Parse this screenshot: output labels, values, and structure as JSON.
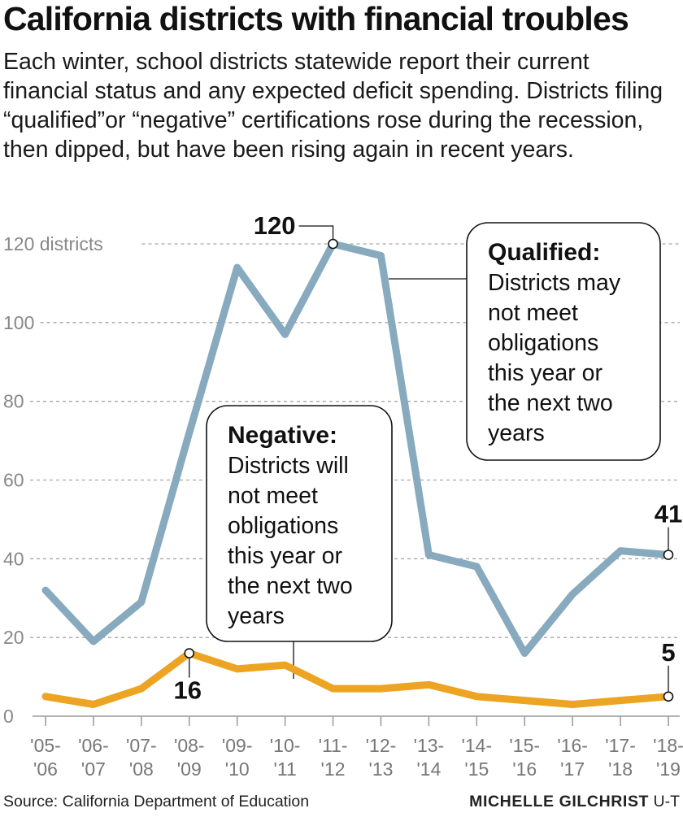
{
  "header": {
    "title": "California districts with financial troubles",
    "subtitle": "Each winter, school districts statewide report their current financial status and any expected deficit spending. Districts filing “qualified”or “negative” certifications rose during the recession, then dipped, but have been rising again in recent years."
  },
  "footer": {
    "source": "Source: California Department of Education",
    "credit_name": "MICHELLE GILCHRIST",
    "credit_org": "U-T"
  },
  "chart_data": {
    "type": "line",
    "categories": [
      [
        "'05-",
        "'06"
      ],
      [
        "'06-",
        "'07"
      ],
      [
        "'07-",
        "'08"
      ],
      [
        "'08-",
        "'09"
      ],
      [
        "'09-",
        "'10"
      ],
      [
        "'10-",
        "'11"
      ],
      [
        "'11-",
        "'12"
      ],
      [
        "'12-",
        "'13"
      ],
      [
        "'13-",
        "'14"
      ],
      [
        "'14-",
        "'15"
      ],
      [
        "'15-",
        "'16"
      ],
      [
        "'16-",
        "'17"
      ],
      [
        "'17-",
        "'18"
      ],
      [
        "'18-",
        "'19"
      ]
    ],
    "ylim": [
      0,
      120
    ],
    "yticks": [
      0,
      20,
      40,
      60,
      80,
      100,
      120
    ],
    "ytick_labels": [
      "0",
      "20",
      "40",
      "60",
      "80",
      "100",
      "120 districts"
    ],
    "grid": true,
    "series": [
      {
        "name": "Qualified:",
        "description": [
          "Districts may",
          "not meet",
          "obligations",
          "this year or",
          "the next two",
          "years"
        ],
        "color": "#87aabe",
        "values": [
          32,
          19,
          29,
          72,
          114,
          97,
          120,
          117,
          41,
          38,
          16,
          31,
          42,
          41
        ]
      },
      {
        "name": "Negative:",
        "description": [
          "Districts will",
          "not meet",
          "obligations",
          "this year or",
          "the next two",
          "years"
        ],
        "color": "#eca422",
        "values": [
          5,
          3,
          7,
          16,
          12,
          13,
          7,
          7,
          8,
          5,
          4,
          3,
          4,
          5
        ]
      }
    ],
    "annotations": [
      {
        "series": 0,
        "index": 6,
        "label": "120"
      },
      {
        "series": 0,
        "index": 13,
        "label": "41"
      },
      {
        "series": 1,
        "index": 3,
        "label": "16"
      },
      {
        "series": 1,
        "index": 13,
        "label": "5"
      }
    ]
  }
}
